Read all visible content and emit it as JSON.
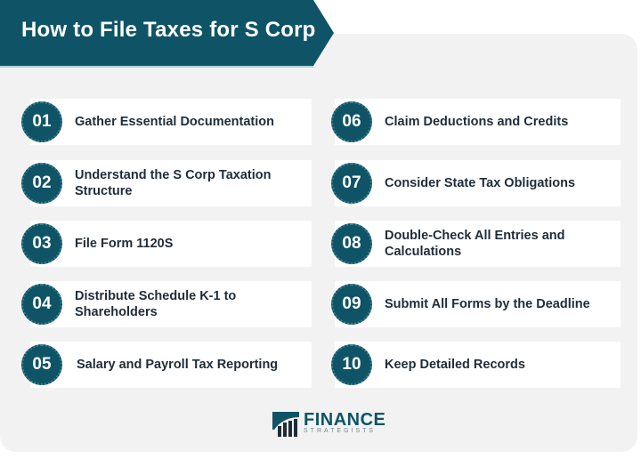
{
  "header": {
    "title": "How to File Taxes for S Corp"
  },
  "colors": {
    "accent": "#0f5466",
    "background": "#f2f2f2",
    "card": "#ffffff",
    "text": "#1f2d3a"
  },
  "steps": [
    {
      "number": "01",
      "label": "Gather Essential Documentation"
    },
    {
      "number": "02",
      "label": "Understand the S Corp Taxation Structure"
    },
    {
      "number": "03",
      "label": "File Form 1120S"
    },
    {
      "number": "04",
      "label": "Distribute Schedule K-1 to Shareholders"
    },
    {
      "number": "05",
      "label": "Salary and Payroll Tax Reporting"
    },
    {
      "number": "06",
      "label": "Claim Deductions and Credits"
    },
    {
      "number": "07",
      "label": "Consider State Tax Obligations"
    },
    {
      "number": "08",
      "label": "Double-Check All Entries and Calculations"
    },
    {
      "number": "09",
      "label": "Submit All Forms by the Deadline"
    },
    {
      "number": "10",
      "label": "Keep Detailed Records"
    }
  ],
  "logo": {
    "line1": "FINANCE",
    "line2": "STRATEGISTS"
  }
}
